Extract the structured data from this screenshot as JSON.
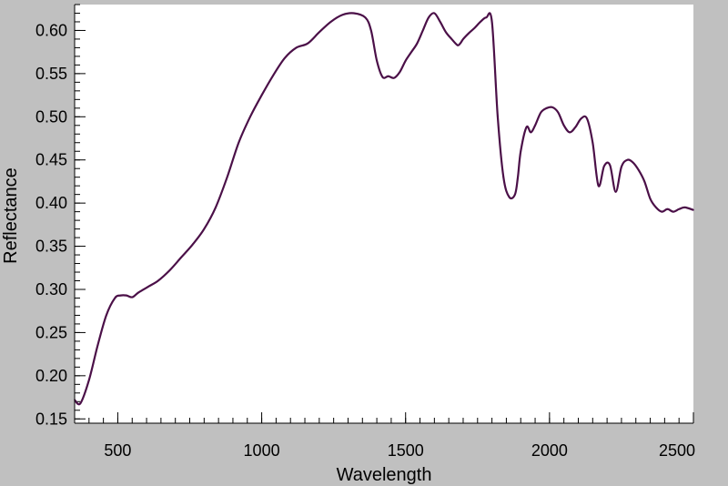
{
  "chart_data": {
    "type": "line",
    "title": "",
    "xlabel": "Wavelength",
    "ylabel": "Reflectance",
    "xlim": [
      350,
      2500
    ],
    "ylim": [
      0.145,
      0.63
    ],
    "xticks": [
      500,
      1000,
      1500,
      2000,
      2500
    ],
    "xtick_labels": [
      "500",
      "1000",
      "1500",
      "2000",
      "2500"
    ],
    "yticks": [
      0.15,
      0.2,
      0.25,
      0.3,
      0.35,
      0.4,
      0.45,
      0.5,
      0.55,
      0.6
    ],
    "ytick_labels": [
      "0.15",
      "0.20",
      "0.25",
      "0.30",
      "0.35",
      "0.40",
      "0.45",
      "0.50",
      "0.55",
      "0.60"
    ],
    "x_minor_step": 50,
    "y_minor_step": 0.01,
    "grid": false,
    "legend": "none",
    "colors": {
      "line": "#4b1048",
      "plot_bg": "#ffffff",
      "frame_bg": "#c0c0c0",
      "axis": "#000000"
    },
    "series": [
      {
        "x": [
          350,
          370,
          400,
          430,
          460,
          490,
          510,
          530,
          550,
          570,
          590,
          610,
          640,
          680,
          720,
          760,
          800,
          840,
          880,
          920,
          960,
          1000,
          1040,
          1080,
          1120,
          1160,
          1200,
          1240,
          1280,
          1320,
          1360,
          1380,
          1400,
          1420,
          1440,
          1460,
          1480,
          1500,
          1520,
          1540,
          1560,
          1580,
          1600,
          1620,
          1640,
          1660,
          1680,
          1690,
          1700,
          1720,
          1740,
          1760,
          1780,
          1800,
          1820,
          1840,
          1860,
          1880,
          1890,
          1900,
          1920,
          1935,
          1950,
          1970,
          1990,
          2010,
          2030,
          2050,
          2070,
          2090,
          2110,
          2130,
          2150,
          2170,
          2190,
          2210,
          2230,
          2250,
          2270,
          2290,
          2310,
          2330,
          2350,
          2370,
          2390,
          2410,
          2430,
          2450,
          2470,
          2500
        ],
        "y": [
          0.172,
          0.168,
          0.195,
          0.235,
          0.27,
          0.29,
          0.293,
          0.293,
          0.291,
          0.296,
          0.3,
          0.304,
          0.31,
          0.322,
          0.337,
          0.352,
          0.37,
          0.395,
          0.43,
          0.47,
          0.5,
          0.525,
          0.548,
          0.568,
          0.58,
          0.585,
          0.598,
          0.61,
          0.618,
          0.62,
          0.615,
          0.6,
          0.565,
          0.546,
          0.547,
          0.545,
          0.552,
          0.565,
          0.575,
          0.585,
          0.6,
          0.615,
          0.62,
          0.61,
          0.598,
          0.59,
          0.583,
          0.585,
          0.59,
          0.597,
          0.603,
          0.61,
          0.615,
          0.61,
          0.5,
          0.43,
          0.407,
          0.41,
          0.43,
          0.46,
          0.488,
          0.482,
          0.49,
          0.505,
          0.51,
          0.511,
          0.505,
          0.49,
          0.482,
          0.488,
          0.498,
          0.498,
          0.47,
          0.42,
          0.443,
          0.444,
          0.413,
          0.442,
          0.45,
          0.447,
          0.438,
          0.425,
          0.405,
          0.395,
          0.39,
          0.393,
          0.39,
          0.393,
          0.395,
          0.392
        ]
      }
    ]
  }
}
